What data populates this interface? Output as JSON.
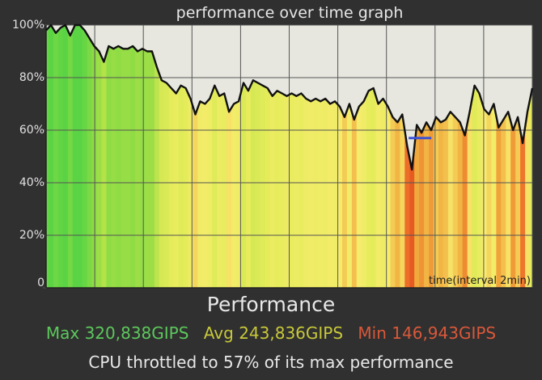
{
  "chart_data": {
    "type": "area",
    "title": "performance over time graph",
    "xlabel": "time(interval 2min)",
    "ylabel": "",
    "ylim": [
      0,
      100
    ],
    "yticks": [
      "0",
      "20%",
      "40%",
      "60%",
      "80%",
      "100%"
    ],
    "x_grid_intervals": 10,
    "grid": true,
    "min_marker": 57,
    "series": [
      {
        "values": [
          98,
          100,
          97,
          99,
          100,
          96,
          100,
          100,
          98,
          95,
          92,
          90,
          86,
          92,
          91,
          92,
          91,
          91,
          92,
          90,
          91,
          90,
          90,
          84,
          79,
          78,
          76,
          74,
          77,
          76,
          72,
          66,
          71,
          70,
          72,
          77,
          73,
          74,
          67,
          70,
          71,
          78,
          75,
          79,
          78,
          77,
          76,
          73,
          75,
          74,
          73,
          74,
          73,
          74,
          72,
          71,
          72,
          71,
          72,
          70,
          71,
          69,
          65,
          70,
          64,
          69,
          71,
          75,
          76,
          70,
          72,
          69,
          65,
          63,
          66,
          54,
          45,
          62,
          59,
          63,
          60,
          65,
          63,
          64,
          67,
          65,
          63,
          58,
          67,
          77,
          74,
          68,
          66,
          70,
          61,
          64,
          67,
          60,
          65,
          55,
          67,
          76
        ]
      }
    ]
  },
  "footer": {
    "title": "Performance",
    "max": "Max 320,838GIPS",
    "avg": "Avg 243,836GIPS",
    "min": "Min 146,943GIPS",
    "throttle": "CPU throttled to 57% of its max performance"
  }
}
